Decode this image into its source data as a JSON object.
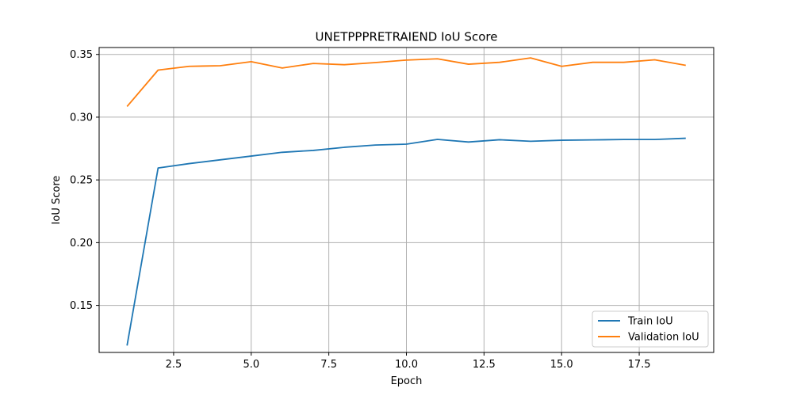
{
  "chart_data": {
    "type": "line",
    "title": "UNETPPPRETRAIEND IoU Score",
    "xlabel": "Epoch",
    "ylabel": "IoU Score",
    "xlim": [
      0.1,
      19.9
    ],
    "ylim": [
      0.1125,
      0.3555
    ],
    "xticks": [
      2.5,
      5.0,
      7.5,
      10.0,
      12.5,
      15.0,
      17.5
    ],
    "xtick_labels": [
      "2.5",
      "5.0",
      "7.5",
      "10.0",
      "12.5",
      "15.0",
      "17.5"
    ],
    "yticks": [
      0.15,
      0.2,
      0.25,
      0.3,
      0.35
    ],
    "ytick_labels": [
      "0.15",
      "0.20",
      "0.25",
      "0.30",
      "0.35"
    ],
    "grid": true,
    "legend_position": "bottom-right",
    "x": [
      1,
      2,
      3,
      4,
      5,
      6,
      7,
      8,
      9,
      10,
      11,
      12,
      13,
      14,
      15,
      16,
      17,
      18,
      19
    ],
    "series": [
      {
        "name": "Train IoU",
        "color": "#1f77b4",
        "values": [
          0.118,
          0.2595,
          0.263,
          0.266,
          0.269,
          0.272,
          0.2735,
          0.276,
          0.2778,
          0.2785,
          0.2823,
          0.2802,
          0.282,
          0.2808,
          0.2816,
          0.2819,
          0.2822,
          0.2822,
          0.2832
        ]
      },
      {
        "name": "Validation IoU",
        "color": "#ff7f0e",
        "values": [
          0.3085,
          0.3375,
          0.3405,
          0.341,
          0.3442,
          0.3392,
          0.3428,
          0.3418,
          0.3435,
          0.3455,
          0.3465,
          0.3422,
          0.3437,
          0.3472,
          0.3405,
          0.3437,
          0.3437,
          0.3457,
          0.3413
        ]
      }
    ]
  }
}
